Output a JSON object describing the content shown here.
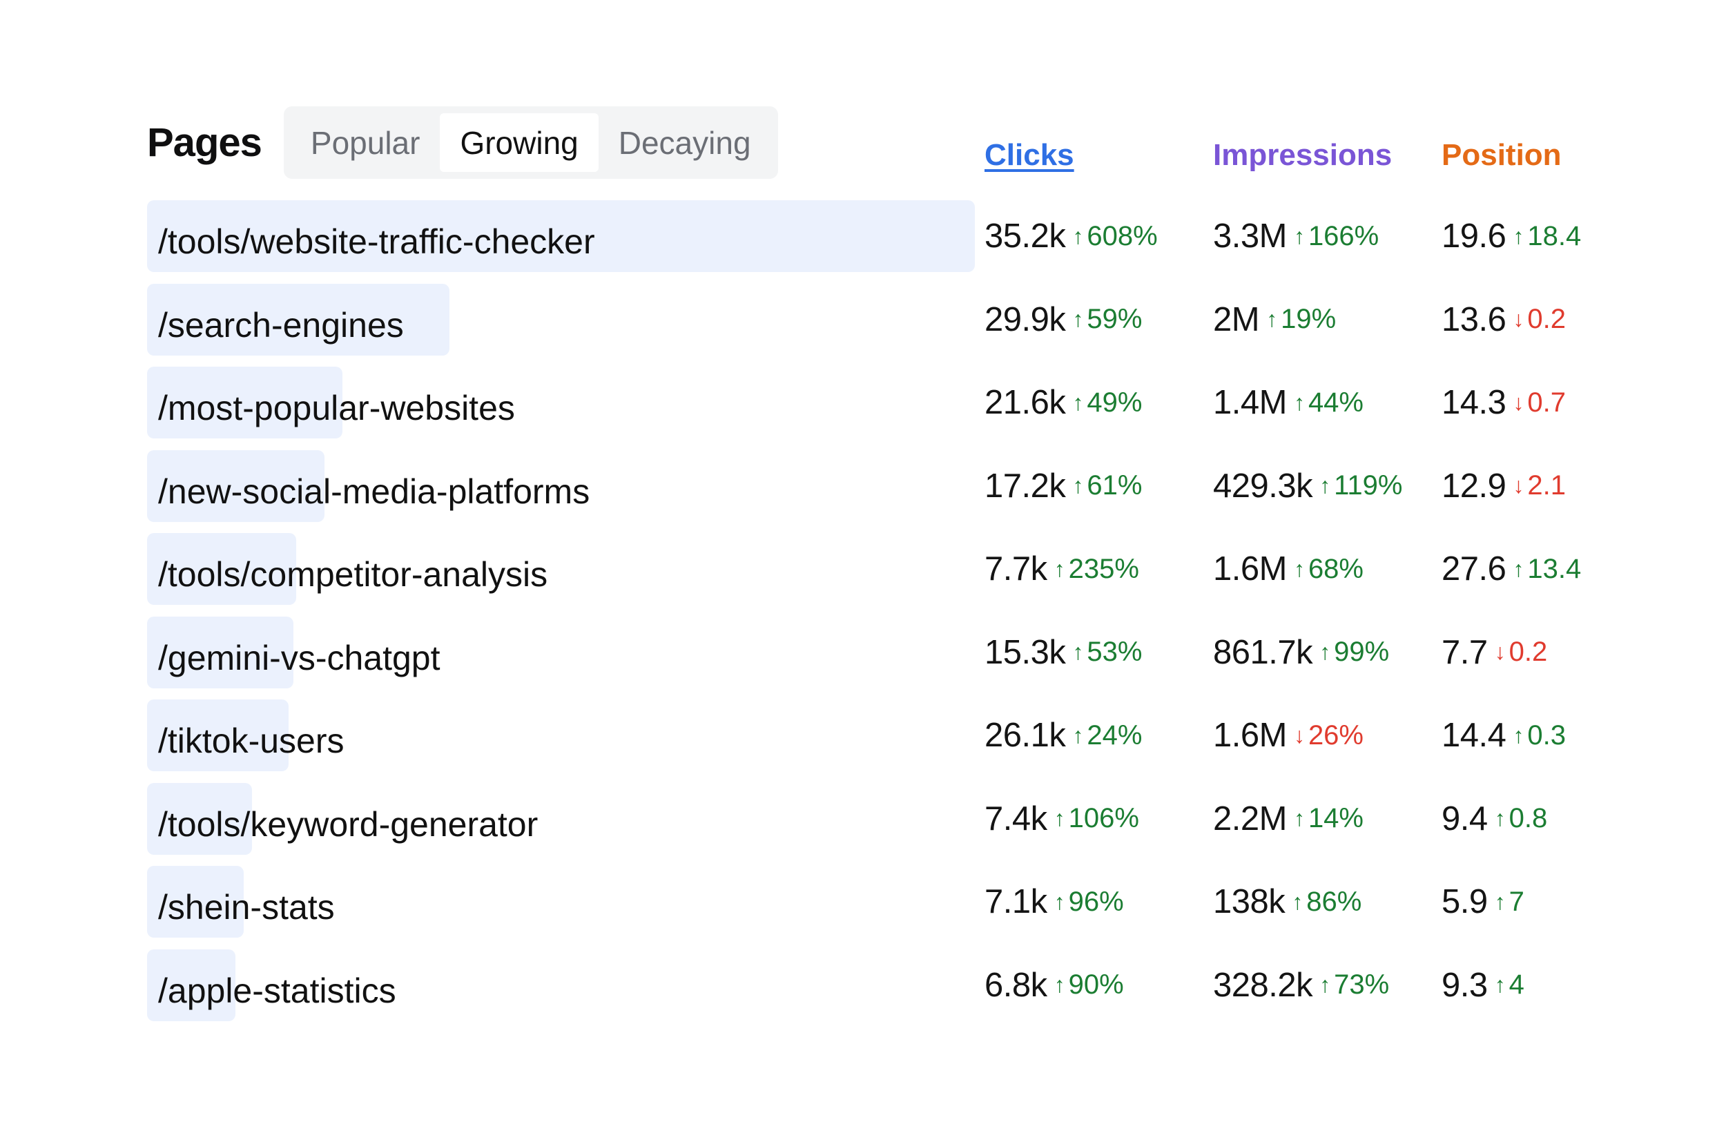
{
  "title": "Pages",
  "tabs": [
    {
      "label": "Popular",
      "active": false
    },
    {
      "label": "Growing",
      "active": true
    },
    {
      "label": "Decaying",
      "active": false
    }
  ],
  "columns": {
    "clicks": "Clicks",
    "impressions": "Impressions",
    "position": "Position"
  },
  "colors": {
    "clicks": "#2f6fe4",
    "impressions": "#7a55d6",
    "position": "#e46a16",
    "up": "#1b7d32",
    "down": "#e03b2e",
    "bar": "#ebf1fd"
  },
  "icons": {
    "up": "arrow-up-icon",
    "down": "arrow-down-icon"
  },
  "rows": [
    {
      "path": "/tools/website-traffic-checker",
      "share": 1.0,
      "clicks": {
        "value": "35.2k",
        "change": "608%",
        "dir": "up"
      },
      "impressions": {
        "value": "3.3M",
        "change": "166%",
        "dir": "up"
      },
      "position": {
        "value": "19.6",
        "change": "18.4",
        "dir": "up"
      }
    },
    {
      "path": "/search-engines",
      "share": 0.365,
      "clicks": {
        "value": "29.9k",
        "change": "59%",
        "dir": "up"
      },
      "impressions": {
        "value": "2M",
        "change": "19%",
        "dir": "up"
      },
      "position": {
        "value": "13.6",
        "change": "0.2",
        "dir": "down"
      }
    },
    {
      "path": "/most-popular-websites",
      "share": 0.236,
      "clicks": {
        "value": "21.6k",
        "change": "49%",
        "dir": "up"
      },
      "impressions": {
        "value": "1.4M",
        "change": "44%",
        "dir": "up"
      },
      "position": {
        "value": "14.3",
        "change": "0.7",
        "dir": "down"
      }
    },
    {
      "path": "/new-social-media-platforms",
      "share": 0.214,
      "clicks": {
        "value": "17.2k",
        "change": "61%",
        "dir": "up"
      },
      "impressions": {
        "value": "429.3k",
        "change": "119%",
        "dir": "up"
      },
      "position": {
        "value": "12.9",
        "change": "2.1",
        "dir": "down"
      }
    },
    {
      "path": "/tools/competitor-analysis",
      "share": 0.18,
      "clicks": {
        "value": "7.7k",
        "change": "235%",
        "dir": "up"
      },
      "impressions": {
        "value": "1.6M",
        "change": "68%",
        "dir": "up"
      },
      "position": {
        "value": "27.6",
        "change": "13.4",
        "dir": "up"
      }
    },
    {
      "path": "/gemini-vs-chatgpt",
      "share": 0.177,
      "clicks": {
        "value": "15.3k",
        "change": "53%",
        "dir": "up"
      },
      "impressions": {
        "value": "861.7k",
        "change": "99%",
        "dir": "up"
      },
      "position": {
        "value": "7.7",
        "change": "0.2",
        "dir": "down"
      }
    },
    {
      "path": "/tiktok-users",
      "share": 0.171,
      "clicks": {
        "value": "26.1k",
        "change": "24%",
        "dir": "up"
      },
      "impressions": {
        "value": "1.6M",
        "change": "26%",
        "dir": "down"
      },
      "position": {
        "value": "14.4",
        "change": "0.3",
        "dir": "up"
      }
    },
    {
      "path": "/tools/keyword-generator",
      "share": 0.127,
      "clicks": {
        "value": "7.4k",
        "change": "106%",
        "dir": "up"
      },
      "impressions": {
        "value": "2.2M",
        "change": "14%",
        "dir": "up"
      },
      "position": {
        "value": "9.4",
        "change": "0.8",
        "dir": "up"
      }
    },
    {
      "path": "/shein-stats",
      "share": 0.117,
      "clicks": {
        "value": "7.1k",
        "change": "96%",
        "dir": "up"
      },
      "impressions": {
        "value": "138k",
        "change": "86%",
        "dir": "up"
      },
      "position": {
        "value": "5.9",
        "change": "7",
        "dir": "up"
      }
    },
    {
      "path": "/apple-statistics",
      "share": 0.107,
      "clicks": {
        "value": "6.8k",
        "change": "90%",
        "dir": "up"
      },
      "impressions": {
        "value": "328.2k",
        "change": "73%",
        "dir": "up"
      },
      "position": {
        "value": "9.3",
        "change": "4",
        "dir": "up"
      }
    }
  ]
}
